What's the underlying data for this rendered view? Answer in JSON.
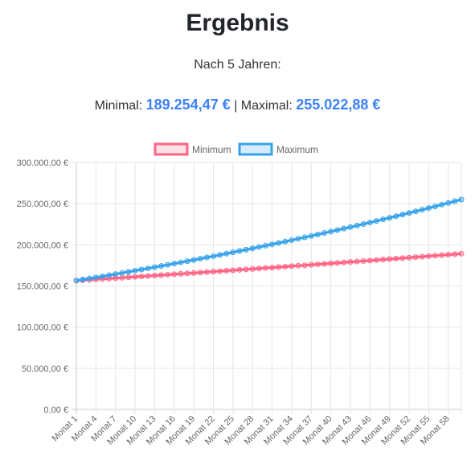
{
  "page": {
    "title": "Ergebnis",
    "subtitle": "Nach 5 Jahren:",
    "min_label": "Minimal:",
    "min_value": "189.254,47 €",
    "separator": "|",
    "max_label": "Maximal:",
    "max_value": "255.022,88 €"
  },
  "chart_data": {
    "type": "line",
    "legend_position": "top",
    "grid": true,
    "ylim": [
      0,
      300000
    ],
    "y_ticks": [
      "0,00 €",
      "50.000,00 €",
      "100.000,00 €",
      "150.000,00 €",
      "200.000,00 €",
      "250.000,00 €",
      "300.000,00 €"
    ],
    "x_tick_labels": [
      "Monat 1",
      "Monat 4",
      "Monat 7",
      "Monat 10",
      "Monat 13",
      "Monat 16",
      "Monat 19",
      "Monat 22",
      "Monat 25",
      "Monat 28",
      "Monat 31",
      "Monat 34",
      "Monat 37",
      "Monat 40",
      "Monat 43",
      "Monat 46",
      "Monat 49",
      "Monat 52",
      "Monat 55",
      "Monat 58"
    ],
    "x_count": 60,
    "series": [
      {
        "name": "Minimum",
        "color": "#ff6384",
        "start": 156500,
        "end": 189254.47
      },
      {
        "name": "Maximum",
        "color": "#36a2eb",
        "start": 156500,
        "end": 255022.88
      }
    ]
  }
}
